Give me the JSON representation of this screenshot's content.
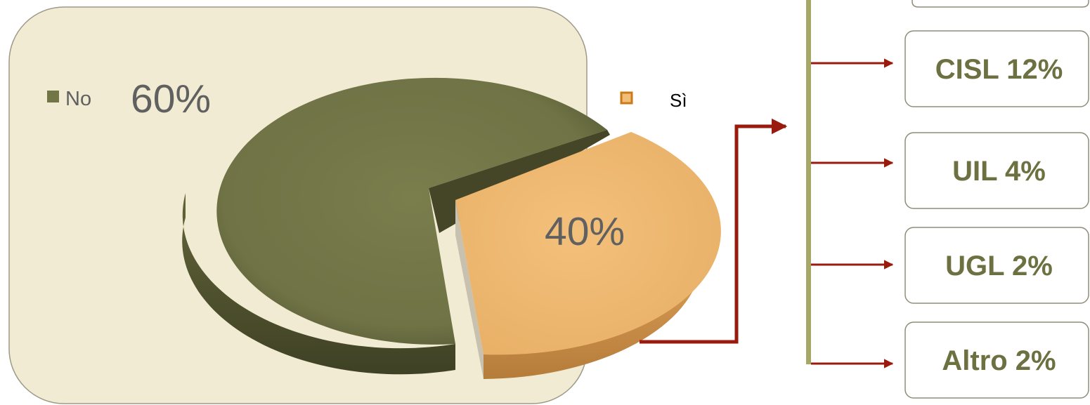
{
  "chart_data": {
    "type": "pie",
    "slices": [
      {
        "label": "No",
        "value": 60,
        "value_label": "60%",
        "color": "#727647"
      },
      {
        "label": "Sì",
        "value": 40,
        "value_label": "40%",
        "color": "#f2be77"
      }
    ],
    "legend": {
      "placement": "top"
    },
    "breakdown": {
      "of": "Sì",
      "items": [
        {
          "label": "CISL 12%"
        },
        {
          "label": "UIL 4%"
        },
        {
          "label": "UGL 2%"
        },
        {
          "label": "Altro 2%"
        }
      ]
    }
  },
  "colors": {
    "panel_bg": "#f2ebd3",
    "panel_border": "#9d9a87",
    "arrow": "#9a1b0e",
    "bar": "#a6a866",
    "box_text": "#6d7141",
    "box_border": "#8f8d78",
    "label_gray": "#606060"
  }
}
